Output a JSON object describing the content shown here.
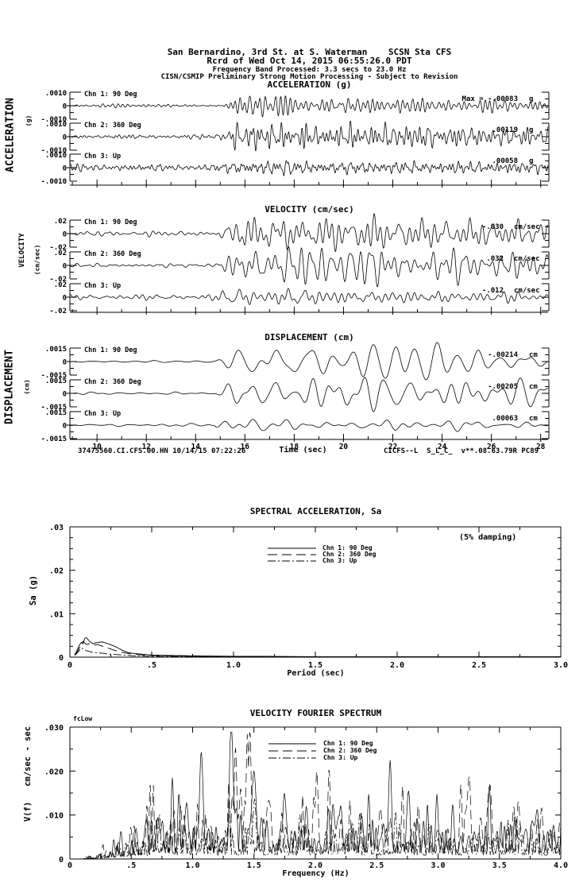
{
  "header": {
    "line1": "San Bernardino, 3rd St. at S. Waterman    SCSN Sta CFS",
    "line2": "Rcrd of Wed Oct 14, 2015 06:55:26.0 PDT",
    "line3": "Frequency Band Processed: 3.3 secs to 23.0 Hz",
    "line4": "CISN/CSMIP Preliminary Strong Motion Processing - Subject to Revision"
  },
  "footer": {
    "record_id": "37475560.CI.CFS.00.HN 10/14/15 07:22:26",
    "processing_code": "CICFS--L  S_L_C_  v**.08.63.79R PC89"
  },
  "chart_data": [
    {
      "type": "line",
      "subtype": "seismic-waveform",
      "title": "ACCELERATION (g)",
      "ylabel": "ACCELERATION",
      "yunit": "(g)",
      "xlim": [
        8.9,
        28.3
      ],
      "x_ticks": [
        10,
        12,
        14,
        16,
        18,
        20,
        22,
        24,
        26,
        28
      ],
      "x_tick_labels_shown": false,
      "trace_ylim": [
        -0.001,
        0.001
      ],
      "y_tick_labels": [
        ".0010",
        "0",
        "-.0010"
      ],
      "event_start_sec": 14.8,
      "series": [
        {
          "label": "Chn 1: 90 Deg",
          "peak_text": "Max =   -.00083",
          "unit": "g",
          "peak_value": -0.00083
        },
        {
          "label": "Chn 2: 360 Deg",
          "peak_text": ".00119",
          "unit": "g",
          "peak_value": 0.00119
        },
        {
          "label": "Chn 3: Up",
          "peak_text": ".00058",
          "unit": "g",
          "peak_value": 0.00058
        }
      ]
    },
    {
      "type": "line",
      "subtype": "seismic-waveform",
      "title": "VELOCITY (cm/sec)",
      "ylabel": "VELOCITY",
      "yunit": "(cm/sec)",
      "xlim": [
        8.9,
        28.3
      ],
      "x_ticks": [
        10,
        12,
        14,
        16,
        18,
        20,
        22,
        24,
        26,
        28
      ],
      "x_tick_labels_shown": false,
      "trace_ylim": [
        -0.02,
        0.02
      ],
      "y_tick_labels": [
        ".02",
        "0",
        "-.02"
      ],
      "event_start_sec": 14.8,
      "series": [
        {
          "label": "Chn 1: 90 Deg",
          "peak_text": "-.030",
          "unit": "cm/sec",
          "peak_value": -0.03
        },
        {
          "label": "Chn 2: 360 Deg",
          "peak_text": ".032",
          "unit": "cm/sec",
          "peak_value": 0.032
        },
        {
          "label": "Chn 3: Up",
          "peak_text": "-.012",
          "unit": "cm/sec",
          "peak_value": -0.012
        }
      ]
    },
    {
      "type": "line",
      "subtype": "seismic-waveform",
      "title": "DISPLACEMENT (cm)",
      "ylabel": "DISPLACEMENT",
      "yunit": "(cm)",
      "xlabel": "Time (sec)",
      "xlim": [
        8.9,
        28.3
      ],
      "x_ticks": [
        10,
        12,
        14,
        16,
        18,
        20,
        22,
        24,
        26,
        28
      ],
      "x_tick_labels": [
        "10",
        "12",
        "14",
        "16",
        "18",
        "20",
        "22",
        "24",
        "26",
        "28"
      ],
      "x_tick_labels_shown": true,
      "trace_ylim": [
        -0.0015,
        0.0015
      ],
      "y_tick_labels": [
        ".0015",
        "0",
        "-.0015"
      ],
      "event_start_sec": 14.8,
      "series": [
        {
          "label": "Chn 1: 90 Deg",
          "peak_text": "-.00214",
          "unit": "cm",
          "peak_value": -0.00214
        },
        {
          "label": "Chn 2: 360 Deg",
          "peak_text": "-.00205",
          "unit": "cm",
          "peak_value": -0.00205
        },
        {
          "label": "Chn 3: Up",
          "peak_text": ".00063",
          "unit": "cm",
          "peak_value": 0.00063
        }
      ]
    },
    {
      "type": "line",
      "title": "SPECTRAL ACCELERATION, Sa",
      "annotation": "(5% damping)",
      "xlabel": "Period (sec)",
      "ylabel": "Sa (g)",
      "xlim": [
        0,
        3.0
      ],
      "ylim": [
        0,
        0.03
      ],
      "x_tick_labels": [
        "0",
        ".5",
        "1.0",
        "1.5",
        "2.0",
        "2.5",
        "3.0"
      ],
      "y_tick_labels": [
        ".03",
        ".02",
        ".01",
        "0"
      ],
      "legend_position": "upper-center",
      "legend": [
        {
          "label": "Chn 1: 90 Deg",
          "style": "solid"
        },
        {
          "label": "Chn 2: 360 Deg",
          "style": "long-dash"
        },
        {
          "label": "Chn 3: Up",
          "style": "dash-dot"
        }
      ],
      "period_sec": [
        0.03,
        0.04,
        0.05,
        0.06,
        0.07,
        0.08,
        0.09,
        0.1,
        0.12,
        0.14,
        0.17,
        0.2,
        0.24,
        0.28,
        0.32,
        0.36,
        0.4,
        0.5,
        0.6,
        0.8,
        1.0,
        1.2,
        1.5,
        2.0,
        2.5,
        3.0
      ],
      "series": [
        {
          "name": "Chn 1: 90 Deg",
          "sa_g": [
            0.0006,
            0.0013,
            0.0021,
            0.0029,
            0.0034,
            0.0031,
            0.0043,
            0.0045,
            0.0037,
            0.0031,
            0.0034,
            0.0035,
            0.003,
            0.0024,
            0.0016,
            0.001,
            0.0008,
            0.0005,
            0.0004,
            0.0003,
            0.0002,
            0.0002,
            0.0001,
            0.0001,
            0.0001,
            0.0001
          ]
        },
        {
          "name": "Chn 2: 360 Deg",
          "sa_g": [
            0.0005,
            0.001,
            0.0016,
            0.0023,
            0.003,
            0.0036,
            0.0033,
            0.0029,
            0.0031,
            0.0027,
            0.0029,
            0.0025,
            0.002,
            0.0015,
            0.0011,
            0.0008,
            0.0006,
            0.0004,
            0.0003,
            0.0002,
            0.0002,
            0.0001,
            0.0001,
            0.0001,
            0.0001,
            0.0
          ]
        },
        {
          "name": "Chn 3: Up",
          "sa_g": [
            0.0004,
            0.0008,
            0.0012,
            0.0017,
            0.0021,
            0.0019,
            0.0017,
            0.0015,
            0.0013,
            0.0011,
            0.001,
            0.0009,
            0.0007,
            0.0006,
            0.0005,
            0.0004,
            0.0003,
            0.0002,
            0.0002,
            0.0001,
            0.0001,
            0.0001,
            0.0,
            0.0,
            0.0,
            0.0
          ]
        }
      ]
    },
    {
      "type": "line",
      "title": "VELOCITY FOURIER SPECTRUM",
      "corner_annotation": "fcLow",
      "xlabel": "Frequency (Hz)",
      "ylabel": "V(f)   cm/sec - sec",
      "xlim": [
        0,
        4.0
      ],
      "ylim": [
        0,
        0.03
      ],
      "x_tick_labels": [
        "0",
        ".5",
        "1.0",
        "1.5",
        "2.0",
        "2.5",
        "3.0",
        "3.5",
        "4.0"
      ],
      "y_tick_labels": [
        ".030",
        ".020",
        ".010",
        "0"
      ],
      "legend": [
        {
          "label": "Chn 1: 90 Deg",
          "style": "solid"
        },
        {
          "label": "Chn 2: 360 Deg",
          "style": "long-dash"
        },
        {
          "label": "Chn 3: Up",
          "style": "dash-dot"
        }
      ],
      "series": [
        {
          "name": "Chn 1: 90 Deg",
          "style": "solid",
          "base_level": 0.0065,
          "notable_peaks_hz_amp": [
            [
              0.95,
              0.013
            ],
            [
              1.07,
              0.019
            ],
            [
              1.32,
              0.026
            ],
            [
              1.5,
              0.023
            ],
            [
              1.75,
              0.014
            ],
            [
              2.2,
              0.011
            ],
            [
              2.6,
              0.009
            ]
          ]
        },
        {
          "name": "Chn 2: 360 Deg",
          "style": "long-dash",
          "base_level": 0.0065,
          "notable_peaks_hz_amp": [
            [
              1.35,
              0.018
            ],
            [
              1.45,
              0.025
            ],
            [
              1.62,
              0.015
            ],
            [
              2.0,
              0.012
            ],
            [
              3.25,
              0.012
            ],
            [
              3.42,
              0.019
            ]
          ]
        },
        {
          "name": "Chn 3: Up",
          "style": "dash-dot",
          "base_level": 0.0042,
          "notable_peaks_hz_amp": [
            [
              1.5,
              0.01
            ],
            [
              1.9,
              0.007
            ],
            [
              2.3,
              0.008
            ],
            [
              3.0,
              0.006
            ]
          ]
        }
      ]
    }
  ]
}
